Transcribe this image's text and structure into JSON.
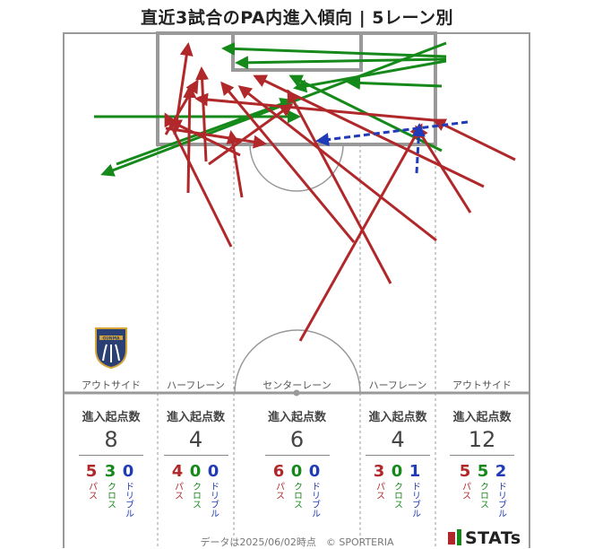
{
  "title": "直近3試合のPA内進入傾向 | 5レーン別",
  "lanes": [
    {
      "label": "アウトサイド",
      "header": "進入起点数",
      "total": "8",
      "pass": "5",
      "cross": "3",
      "dribble": "0"
    },
    {
      "label": "ハーフレーン",
      "header": "進入起点数",
      "total": "4",
      "pass": "4",
      "cross": "0",
      "dribble": "0"
    },
    {
      "label": "センターレーン",
      "header": "進入起点数",
      "total": "6",
      "pass": "6",
      "cross": "0",
      "dribble": "0"
    },
    {
      "label": "ハーフレーン",
      "header": "進入起点数",
      "total": "4",
      "pass": "3",
      "cross": "0",
      "dribble": "1"
    },
    {
      "label": "アウトサイド",
      "header": "進入起点数",
      "total": "12",
      "pass": "5",
      "cross": "5",
      "dribble": "2"
    }
  ],
  "stat_labels": {
    "pass": "パス",
    "cross": "クロス",
    "dribble": "ドリブル"
  },
  "colors": {
    "pass": "#b0282a",
    "cross": "#15891a",
    "dribble": "#1f3bb8",
    "pitch_line": "#999999"
  },
  "logo_text": "GUNMA",
  "footer": "データは2025/06/02時点　© SPORTERIA",
  "brand": "STATs"
}
